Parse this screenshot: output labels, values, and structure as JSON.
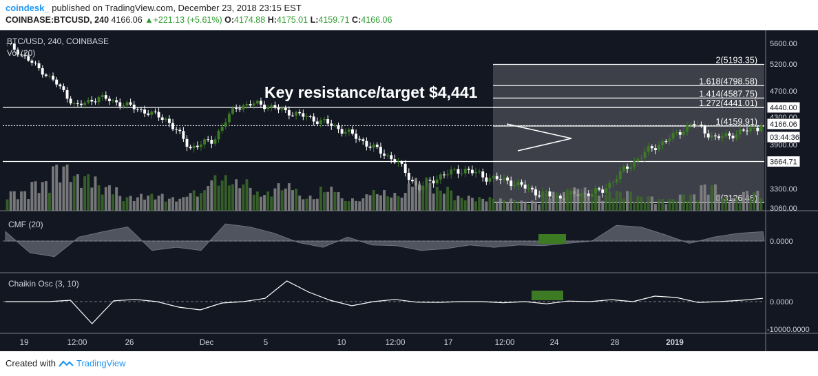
{
  "header": {
    "brand": "coindesk_",
    "published": "published on TradingView.com, December 23, 2018 23:15 EST",
    "symbol": "COINBASE:BTCUSD, 240",
    "last": "4166.06",
    "change": "+221.13 (+5.61%)",
    "open_label": "O:",
    "open": "4174.88",
    "high_label": "H:",
    "high": "4175.01",
    "low_label": "L:",
    "low": "4159.71",
    "close_label": "C:",
    "close": "4166.06"
  },
  "footer": {
    "created_with": "Created with",
    "brand": "TradingView"
  },
  "colors": {
    "background": "#131722",
    "up": "#3c7a24",
    "down": "#ffffff",
    "accent": "#2196f3",
    "volume_up": "#3d6b2a",
    "volume_down": "#888888"
  },
  "chart_data": [
    {
      "type": "candlestick",
      "title": "BTC/USD, 240, COINBASE",
      "volume_label": "Vol (20)",
      "annotation": "Key resistance/target $4,441",
      "ylim": [
        3060,
        5600
      ],
      "yticks": [
        "5600.00",
        "5200.00",
        "4700.00",
        "4440.00",
        "4300.00",
        "4166.06",
        "03:44:36",
        "3900.00",
        "3664.71",
        "3300.00",
        "3060.00"
      ],
      "price_labels": {
        "hline_upper": "4440.00",
        "last": "4166.06",
        "countdown": "03:44:36",
        "hline_lower": "3664.71"
      },
      "fib_levels": [
        {
          "label": "2(5193.35)",
          "value": 5193.35
        },
        {
          "label": "1.618(4798.58)",
          "value": 4798.58
        },
        {
          "label": "1.414(4587.75)",
          "value": 4587.75
        },
        {
          "label": "1.272(4441.01)",
          "value": 4441.01
        },
        {
          "label": "1(4159.91)",
          "value": 4159.91
        },
        {
          "label": "0(3126.46)",
          "value": 3126.46
        }
      ],
      "x_ticks": [
        "19",
        "12:00",
        "26",
        "Dec",
        "5",
        "10",
        "12:00",
        "17",
        "12:00",
        "24",
        "28",
        "2019"
      ],
      "price_path": [
        5600,
        5250,
        4900,
        4450,
        4600,
        4500,
        4380,
        4250,
        3850,
        3950,
        4450,
        4500,
        4400,
        4300,
        4200,
        4050,
        3850,
        3680,
        3300,
        3480,
        3560,
        3450,
        3400,
        3270,
        3190,
        3230,
        3260,
        3550,
        3800,
        3980,
        4200,
        3980,
        4060,
        4150
      ],
      "path_low": 3156,
      "volume": [
        30,
        45,
        70,
        55,
        38,
        22,
        25,
        20,
        30,
        52,
        46,
        28,
        40,
        22,
        35,
        18,
        30,
        26,
        48,
        35,
        22,
        20,
        18,
        15,
        28,
        35,
        24,
        30,
        22,
        18,
        25,
        40,
        20,
        30
      ]
    },
    {
      "type": "area",
      "title": "CMF (20)",
      "ylim": [
        -0.3,
        0.3
      ],
      "yticks": [
        "0.0000"
      ],
      "values": [
        0.12,
        -0.15,
        -0.2,
        0.05,
        0.12,
        0.18,
        -0.12,
        -0.08,
        -0.12,
        0.22,
        0.18,
        0.1,
        -0.02,
        -0.08,
        0.05,
        -0.05,
        -0.06,
        -0.12,
        -0.1,
        -0.05,
        -0.08,
        -0.05,
        -0.06,
        -0.03,
        0.0,
        0.2,
        0.18,
        0.08,
        -0.03,
        0.05,
        0.1,
        0.12
      ]
    },
    {
      "type": "line",
      "title": "Chaikin Osc (3, 10)",
      "ylim": [
        -11000,
        9000
      ],
      "yticks": [
        "0.0000",
        "-10000.0000"
      ],
      "values": [
        0,
        0,
        0,
        500,
        -8000,
        300,
        800,
        0,
        -2000,
        -3000,
        -500,
        0,
        1200,
        7500,
        3500,
        500,
        -1500,
        0,
        800,
        -200,
        -300,
        0,
        0,
        -400,
        0,
        -800,
        200,
        0,
        700,
        0,
        2000,
        1500,
        -300,
        0,
        500,
        1200
      ]
    }
  ]
}
